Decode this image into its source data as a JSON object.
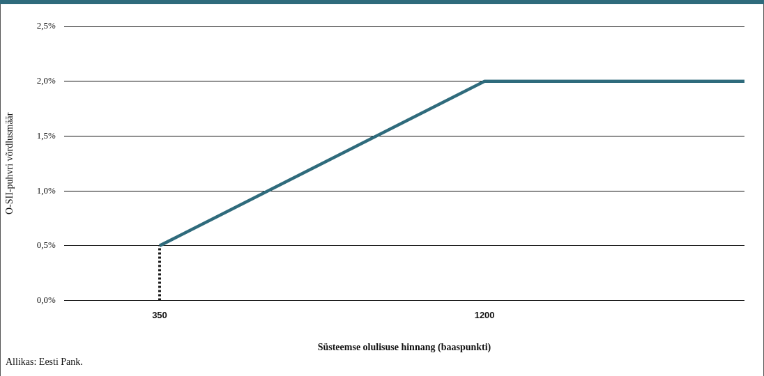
{
  "chart_data": {
    "type": "line",
    "xlabel": "Süsteemse olulisuse hinnang (baaspunkti)",
    "ylabel": "O-SII-puhvri võrdlusmäär",
    "xlim": [
      100,
      1880
    ],
    "xticks": [
      350,
      1200
    ],
    "ylim": [
      0,
      2.5
    ],
    "yticks": [
      {
        "value": 0,
        "label": "0,0%"
      },
      {
        "value": 0.5,
        "label": "0,5%"
      },
      {
        "value": 1,
        "label": "1,0%"
      },
      {
        "value": 1.5,
        "label": "1,5%"
      },
      {
        "value": 2,
        "label": "2,0%"
      },
      {
        "value": 2.5,
        "label": "2,5%"
      }
    ],
    "series": [
      {
        "color": "#2f6b7c",
        "x": [
          350,
          1200,
          1880
        ],
        "values": [
          0.5,
          2,
          2
        ],
        "line_style": "solid"
      },
      {
        "color": "#1a1a1a",
        "x": [
          350,
          350
        ],
        "values": [
          0,
          0.5
        ],
        "line_style": "dotted"
      }
    ],
    "grid": "y",
    "legend": false,
    "marker": "none",
    "annotations": [
      "Allikas: Eesti Pank."
    ]
  }
}
